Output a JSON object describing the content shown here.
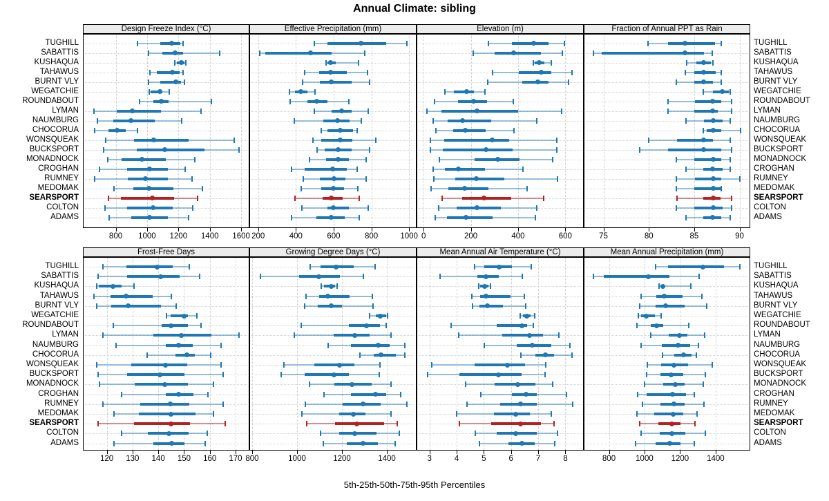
{
  "title": "Annual Climate: sibling",
  "caption": "5th-25th-50th-75th-95th Percentiles",
  "percentiles_shown": [
    "5th",
    "25th",
    "50th",
    "75th",
    "95th"
  ],
  "highlight_site": "SEARSPORT",
  "colors": {
    "series": "#1f77b4",
    "series_thin": "rgba(31,119,180,0.45)",
    "highlight": "#b22222",
    "highlight_thin": "rgba(178,34,34,0.5)",
    "grid": "#c9c9c9",
    "strip_bg": "#ececec",
    "border": "#000000"
  },
  "sites": [
    "TUGHILL",
    "SABATTIS",
    "KUSHAQUA",
    "TAHAWUS",
    "BURNT VLY",
    "WEGATCHIE",
    "ROUNDABOUT",
    "LYMAN",
    "NAUMBURG",
    "CHOCORUA",
    "WONSQUEAK",
    "BUCKSPORT",
    "MONADNOCK",
    "CROGHAN",
    "RUMNEY",
    "MEDOMAK",
    "SEARSPORT",
    "COLTON",
    "ADAMS"
  ],
  "chart_data": [
    {
      "type": "dot-interval",
      "title": "Design Freeze Index (°C)",
      "row": 0,
      "col": 0,
      "xlim": [
        595,
        1648
      ],
      "ticks": [
        800,
        1000,
        1200,
        1400,
        1600
      ],
      "values": [
        [
          937,
          1083,
          1156,
          1214,
          1231
        ],
        [
          1010,
          1097,
          1180,
          1231,
          1461
        ],
        [
          1177,
          1189,
          1218,
          1240,
          1247
        ],
        [
          1020,
          1061,
          1163,
          1206,
          1231
        ],
        [
          1010,
          1083,
          1182,
          1218,
          1240
        ],
        [
          1013,
          1024,
          1080,
          1097,
          1141
        ],
        [
          954,
          1042,
          1090,
          1138,
          1410
        ],
        [
          663,
          806,
          905,
          1090,
          1342
        ],
        [
          682,
          784,
          898,
          1051,
          1221
        ],
        [
          667,
          752,
          810,
          864,
          940
        ],
        [
          736,
          915,
          1043,
          1265,
          1556
        ],
        [
          723,
          933,
          1112,
          1367,
          1585
        ],
        [
          748,
          839,
          966,
          1119,
          1304
        ],
        [
          697,
          871,
          1014,
          1134,
          1243
        ],
        [
          667,
          879,
          991,
          1134,
          1287
        ],
        [
          788,
          912,
          1010,
          1166,
          1352
        ],
        [
          752,
          835,
          1032,
          1170,
          1323
        ],
        [
          733,
          874,
          1039,
          1163,
          1291
        ],
        [
          759,
          900,
          1017,
          1131,
          1265
        ]
      ]
    },
    {
      "type": "dot-interval",
      "title": "Effective Precipitation (mm)",
      "row": 0,
      "col": 1,
      "xlim": [
        157,
        1036
      ],
      "ticks": [
        200,
        400,
        600,
        800,
        1000
      ],
      "values": [
        [
          496,
          569,
          743,
          878,
          988
        ],
        [
          210,
          237,
          477,
          591,
          764
        ],
        [
          560,
          566,
          582,
          612,
          731
        ],
        [
          448,
          524,
          585,
          670,
          778
        ],
        [
          436,
          526,
          588,
          697,
          790
        ],
        [
          367,
          395,
          428,
          460,
          503
        ],
        [
          371,
          460,
          511,
          566,
          682
        ],
        [
          496,
          591,
          643,
          695,
          783
        ],
        [
          392,
          546,
          621,
          685,
          747
        ],
        [
          533,
          569,
          636,
          704,
          725
        ],
        [
          489,
          536,
          634,
          698,
          823
        ],
        [
          511,
          554,
          625,
          695,
          790
        ],
        [
          471,
          560,
          625,
          682,
          774
        ],
        [
          375,
          448,
          593,
          668,
          723
        ],
        [
          438,
          526,
          603,
          664,
          772
        ],
        [
          428,
          536,
          597,
          656,
          729
        ],
        [
          395,
          542,
          587,
          649,
          737
        ],
        [
          432,
          569,
          599,
          680,
          783
        ],
        [
          377,
          509,
          588,
          658,
          737
        ]
      ]
    },
    {
      "type": "dot-interval",
      "title": "Elevation (m)",
      "row": 0,
      "col": 2,
      "xlim": [
        -27,
        675
      ],
      "ticks": [
        0,
        200,
        400,
        600
      ],
      "values": [
        [
          273,
          373,
          465,
          529,
          597
        ],
        [
          210,
          302,
          382,
          498,
          587
        ],
        [
          463,
          470,
          490,
          512,
          539
        ],
        [
          293,
          402,
          497,
          541,
          629
        ],
        [
          270,
          417,
          483,
          529,
          615
        ],
        [
          90,
          129,
          182,
          212,
          259
        ],
        [
          46,
          146,
          212,
          268,
          380
        ],
        [
          14,
          75,
          226,
          399,
          585
        ],
        [
          41,
          101,
          166,
          285,
          480
        ],
        [
          53,
          124,
          176,
          263,
          382
        ],
        [
          29,
          88,
          290,
          363,
          563
        ],
        [
          29,
          80,
          263,
          378,
          563
        ],
        [
          67,
          217,
          314,
          407,
          546
        ],
        [
          39,
          90,
          148,
          260,
          420
        ],
        [
          43,
          134,
          224,
          341,
          568
        ],
        [
          31,
          104,
          173,
          275,
          439
        ],
        [
          78,
          163,
          254,
          371,
          507
        ],
        [
          63,
          139,
          226,
          326,
          478
        ],
        [
          49,
          100,
          178,
          293,
          472
        ]
      ]
    },
    {
      "type": "dot-interval",
      "title": "Fraction of Annual PPT as Rain",
      "row": 0,
      "col": 3,
      "xlim": [
        72.9,
        91.1
      ],
      "ticks": [
        75,
        80,
        85,
        90
      ],
      "values": [
        [
          79.9,
          82.1,
          84.0,
          87.3,
          88.0
        ],
        [
          73.9,
          74.8,
          84.0,
          86.1,
          87.0
        ],
        [
          84.2,
          85.2,
          86.0,
          86.8,
          87.1
        ],
        [
          84.0,
          85.0,
          86.0,
          87.4,
          88.0
        ],
        [
          83.0,
          85.0,
          86.0,
          87.1,
          88.0
        ],
        [
          86.0,
          87.1,
          88.1,
          88.8,
          89.0
        ],
        [
          82.1,
          85.1,
          87.0,
          88.0,
          89.1
        ],
        [
          82.1,
          85.0,
          87.0,
          87.6,
          89.1
        ],
        [
          84.1,
          86.1,
          87.1,
          88.1,
          89.0
        ],
        [
          86.0,
          86.4,
          87.1,
          88.0,
          90.1
        ],
        [
          80.0,
          83.1,
          86.0,
          87.1,
          89.0
        ],
        [
          79.0,
          82.1,
          86.0,
          88.0,
          89.1
        ],
        [
          83.0,
          85.0,
          87.1,
          88.0,
          89.0
        ],
        [
          84.1,
          86.0,
          87.0,
          88.1,
          89.0
        ],
        [
          83.0,
          85.1,
          87.1,
          88.0,
          90.0
        ],
        [
          83.0,
          85.0,
          87.1,
          87.9,
          88.0
        ],
        [
          83.1,
          86.0,
          87.1,
          87.9,
          89.1
        ],
        [
          83.0,
          85.0,
          87.1,
          88.1,
          89.1
        ],
        [
          84.1,
          86.0,
          87.0,
          88.0,
          89.0
        ]
      ]
    },
    {
      "type": "dot-interval",
      "title": "Frost-Free Days",
      "row": 1,
      "col": 0,
      "xlim": [
        111,
        175.1
      ],
      "ticks": [
        120,
        130,
        140,
        150,
        160,
        170
      ],
      "values": [
        [
          118.4,
          127.5,
          139.6,
          145.7,
          152.0
        ],
        [
          116.5,
          127.8,
          140.8,
          148.3,
          156.1
        ],
        [
          116.2,
          116.9,
          122.5,
          125.8,
          130.6
        ],
        [
          115.1,
          121.5,
          127.5,
          137.7,
          145.0
        ],
        [
          116.2,
          121.8,
          128.4,
          141.0,
          147.0
        ],
        [
          143.2,
          144.8,
          150.1,
          151.4,
          155.1
        ],
        [
          122.5,
          141.2,
          145.0,
          151.4,
          156.5
        ],
        [
          118.4,
          138.0,
          148.9,
          160.5,
          171.3
        ],
        [
          123.5,
          143.0,
          147.9,
          153.5,
          164.3
        ],
        [
          135.8,
          146.8,
          151.0,
          154.2,
          160.4
        ],
        [
          116.2,
          129.5,
          142.7,
          151.2,
          164.3
        ],
        [
          116.5,
          128.0,
          140.6,
          150.1,
          165.1
        ],
        [
          117.3,
          130.8,
          142.6,
          151.4,
          161.3
        ],
        [
          125.8,
          143.0,
          147.9,
          153.6,
          159.4
        ],
        [
          118.5,
          133.0,
          144.6,
          152.0,
          165.3
        ],
        [
          122.7,
          132.4,
          145.0,
          154.5,
          161.4
        ],
        [
          116.6,
          130.6,
          145.0,
          152.3,
          166.0
        ],
        [
          125.8,
          135.9,
          144.2,
          151.7,
          158.9
        ],
        [
          122.7,
          138.0,
          145.2,
          150.1,
          158.3
        ]
      ]
    },
    {
      "type": "dot-interval",
      "title": "Growing Degree Days (°C)",
      "row": 1,
      "col": 1,
      "xlim": [
        791,
        1529
      ],
      "ticks": [
        800,
        1000,
        1200,
        1400
      ],
      "values": [
        [
          1060,
          1104,
          1175,
          1252,
          1347
        ],
        [
          837,
          1009,
          1098,
          1191,
          1295
        ],
        [
          1109,
          1121,
          1152,
          1170,
          1177
        ],
        [
          1040,
          1100,
          1137,
          1234,
          1334
        ],
        [
          1035,
          1093,
          1152,
          1199,
          1339
        ],
        [
          1324,
          1350,
          1372,
          1398,
          1404
        ],
        [
          1018,
          1230,
          1309,
          1370,
          1396
        ],
        [
          988,
          1162,
          1257,
          1322,
          1419
        ],
        [
          1137,
          1239,
          1360,
          1411,
          1480
        ],
        [
          1281,
          1342,
          1375,
          1439,
          1481
        ],
        [
          943,
          1076,
          1188,
          1254,
          1370
        ],
        [
          929,
          1035,
          1165,
          1230,
          1367
        ],
        [
          1054,
          1167,
          1244,
          1332,
          1418
        ],
        [
          1121,
          1239,
          1348,
          1398,
          1462
        ],
        [
          1037,
          1203,
          1293,
          1373,
          1488
        ],
        [
          1022,
          1189,
          1252,
          1306,
          1418
        ],
        [
          1042,
          1168,
          1266,
          1388,
          1447
        ],
        [
          1104,
          1189,
          1257,
          1353,
          1455
        ],
        [
          1117,
          1222,
          1293,
          1360,
          1437
        ]
      ]
    },
    {
      "type": "dot-interval",
      "title": "Mean Annual Air Temperature (°C)",
      "row": 1,
      "col": 2,
      "xlim": [
        2.55,
        8.65
      ],
      "ticks": [
        3,
        4,
        5,
        6,
        7,
        8
      ],
      "values": [
        [
          4.66,
          5.02,
          5.55,
          6.02,
          6.75
        ],
        [
          3.4,
          4.75,
          5.08,
          5.54,
          6.41
        ],
        [
          4.81,
          4.87,
          5.02,
          5.16,
          5.25
        ],
        [
          4.55,
          4.87,
          5.09,
          5.99,
          6.48
        ],
        [
          4.58,
          4.83,
          5.12,
          5.71,
          6.54
        ],
        [
          6.34,
          6.44,
          6.58,
          6.72,
          6.88
        ],
        [
          3.79,
          5.47,
          6.41,
          6.58,
          6.83
        ],
        [
          4.07,
          5.68,
          6.69,
          7.17,
          7.76
        ],
        [
          5.02,
          6.22,
          6.79,
          7.49,
          8.17
        ],
        [
          6.35,
          6.89,
          7.27,
          7.59,
          8.25
        ],
        [
          3.08,
          4.66,
          5.86,
          6.52,
          7.28
        ],
        [
          2.93,
          4.09,
          5.53,
          6.39,
          7.26
        ],
        [
          4.32,
          5.4,
          6.24,
          6.89,
          7.54
        ],
        [
          4.89,
          6.02,
          6.56,
          6.94,
          8.03
        ],
        [
          4.39,
          5.59,
          6.35,
          6.94,
          8.27
        ],
        [
          3.99,
          5.38,
          6.18,
          6.69,
          7.48
        ],
        [
          4.11,
          5.27,
          6.34,
          7.11,
          7.59
        ],
        [
          4.68,
          5.48,
          6.16,
          6.96,
          7.72
        ],
        [
          4.85,
          5.91,
          6.39,
          6.88,
          7.62
        ]
      ]
    },
    {
      "type": "dot-interval",
      "title": "Mean Annual Precipitation (mm)",
      "row": 1,
      "col": 3,
      "xlim": [
        662,
        1591
      ],
      "ticks": [
        800,
        1000,
        1200,
        1400
      ],
      "values": [
        [
          1062,
          1133,
          1330,
          1446,
          1537
        ],
        [
          714,
          769,
          1023,
          1139,
          1307
        ],
        [
          1081,
          1088,
          1103,
          1110,
          1262
        ],
        [
          981,
          1066,
          1110,
          1214,
          1324
        ],
        [
          974,
          1062,
          1120,
          1227,
          1350
        ],
        [
          965,
          982,
          1010,
          1059,
          1092
        ],
        [
          956,
          1036,
          1068,
          1107,
          1249
        ],
        [
          1036,
          1137,
          1197,
          1242,
          1339
        ],
        [
          982,
          1098,
          1188,
          1255,
          1303
        ],
        [
          1101,
          1168,
          1221,
          1264,
          1290
        ],
        [
          1017,
          1094,
          1165,
          1245,
          1381
        ],
        [
          1013,
          1088,
          1150,
          1219,
          1343
        ],
        [
          1001,
          1107,
          1175,
          1226,
          1330
        ],
        [
          961,
          1013,
          1156,
          1232,
          1279
        ],
        [
          987,
          1088,
          1165,
          1226,
          1335
        ],
        [
          959,
          1055,
          1162,
          1217,
          1294
        ],
        [
          972,
          1079,
          1152,
          1204,
          1285
        ],
        [
          981,
          1084,
          1152,
          1230,
          1342
        ],
        [
          948,
          1064,
          1143,
          1204,
          1281
        ]
      ]
    }
  ]
}
